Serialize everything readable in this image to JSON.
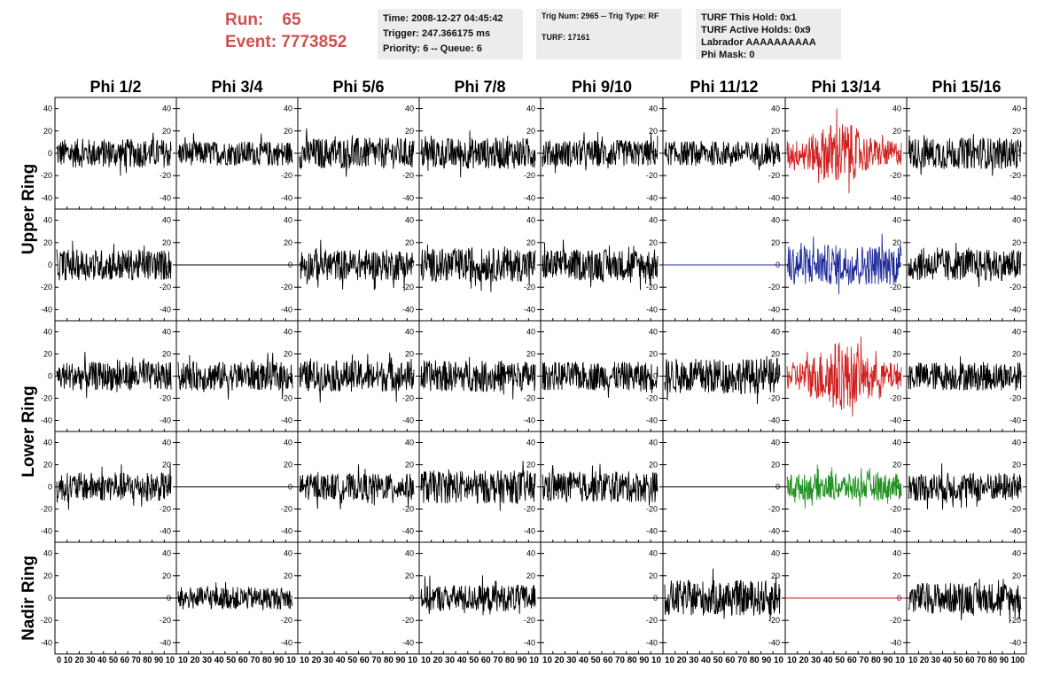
{
  "header": {
    "run_label": "Run:",
    "run_value": "65",
    "event_label": "Event:",
    "event_value": "7773852",
    "time_line": "Time: 2008-12-27 04:45:42",
    "trigger_line": "Trigger: 247.366175 ms",
    "priority_line": "Priority: 6 -- Queue: 6",
    "trig_line": "Trig Num: 2965 -- Trig Type: RF",
    "turf_line": "TURF: 17161",
    "turf_hold": "TURF This Hold: 0x1",
    "turf_active": "TURF Active Holds: 0x9",
    "labrador": "Labrador AAAAAAAAAA",
    "phi_mask": "Phi Mask: 0"
  },
  "colors": {
    "header_text": "#d05050",
    "trace_default": "#000000",
    "trace_red": "#d02020",
    "trace_blue": "#1f2a9a",
    "trace_green": "#209020"
  },
  "chart_data": {
    "type": "line",
    "columns": [
      "Phi 1/2",
      "Phi 3/4",
      "Phi 5/6",
      "Phi 7/8",
      "Phi 9/10",
      "Phi 11/12",
      "Phi 13/14",
      "Phi 15/16"
    ],
    "rows": [
      "Upper Ring",
      "Lower Ring",
      "Nadir Ring"
    ],
    "xlim": [
      0,
      100
    ],
    "ylim": [
      -50,
      50
    ],
    "yticks": [
      40,
      20,
      0,
      -20,
      -40
    ],
    "xtick_label_strips": [
      "0 10 20 30 40 50 60 70 80 90 10",
      "10 20 30 40 50 60 70 80 90 10",
      "10 20 30 40 50 60 70 80 90 10",
      "10 20 30 40 50 60 70 80 90 10",
      "10 20 30 40 50 60 70 80 90 10",
      "10 20 30 40 50 60 70 80 90 10",
      "10 20 30 40 50 60 70 80 90 10",
      "10 20 30 40 50 60 70 80 90 100"
    ],
    "panels": [
      [
        "noise",
        "noise",
        "noise",
        "noise",
        "noise",
        "noise",
        "noise-red",
        "noise"
      ],
      [
        "noise",
        "flat",
        "noise",
        "noise",
        "noise",
        "flat-blue",
        "noise-blue",
        "noise"
      ],
      [
        "noise",
        "noise",
        "noise",
        "noise",
        "noise",
        "noise",
        "noise-red",
        "noise"
      ],
      [
        "noise",
        "flat",
        "noise",
        "noise",
        "noise",
        "flat",
        "noise-green",
        "noise"
      ],
      [
        "flat",
        "noise",
        "flat",
        "noise",
        "flat",
        "noise",
        "flat-red",
        "noise"
      ]
    ],
    "amplitude": [
      [
        13,
        11,
        14,
        14,
        12,
        11,
        20,
        14
      ],
      [
        14,
        0,
        14,
        15,
        14,
        0,
        18,
        14
      ],
      [
        13,
        13,
        14,
        14,
        13,
        16,
        22,
        13
      ],
      [
        13,
        0,
        12,
        15,
        14,
        0,
        12,
        13
      ],
      [
        0,
        10,
        0,
        12,
        0,
        16,
        0,
        14
      ]
    ]
  }
}
